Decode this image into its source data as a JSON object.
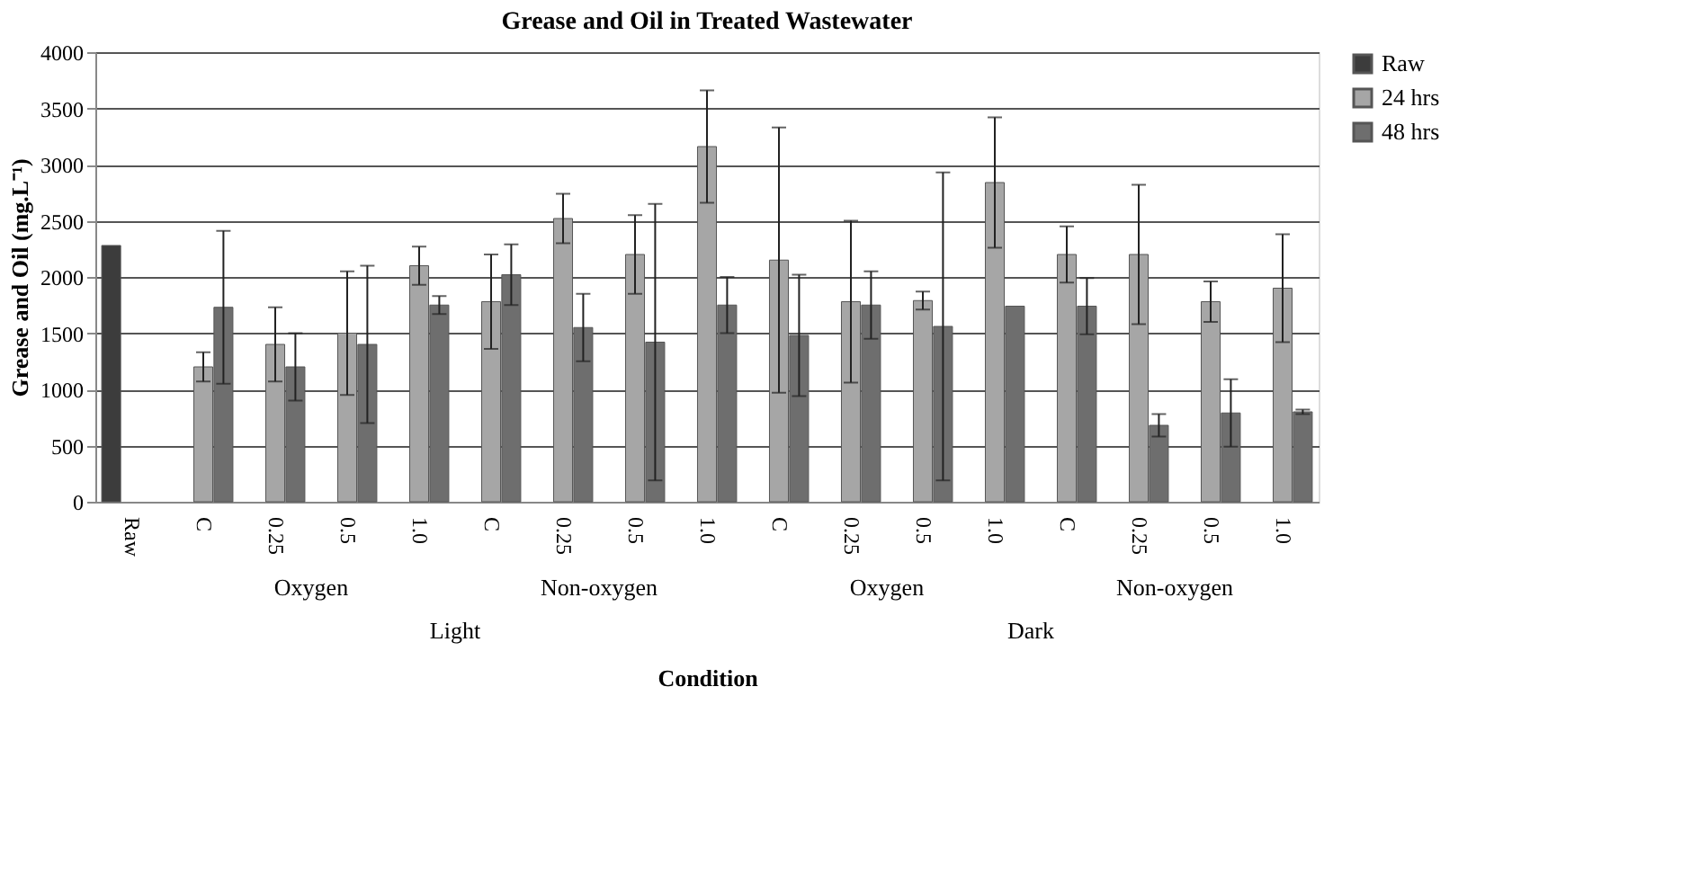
{
  "chart_data": {
    "type": "bar",
    "title": "Grease and Oil in Treated Wastewater",
    "xlabel": "Condition",
    "ylabel": "Grease and Oil (mg.L⁻¹)",
    "categories": [
      "Raw",
      "C",
      "0.25",
      "0.5",
      "1.0",
      "C",
      "0.25",
      "0.5",
      "1.0",
      "C",
      "0.25",
      "0.5",
      "1.0",
      "C",
      "0.25",
      "0.5",
      "1.0"
    ],
    "series": [
      {
        "name": "Raw",
        "color": "#3c3c3c",
        "values": [
          2280,
          null,
          null,
          null,
          null,
          null,
          null,
          null,
          null,
          null,
          null,
          null,
          null,
          null,
          null,
          null,
          null
        ],
        "errors": [
          null,
          null,
          null,
          null,
          null,
          null,
          null,
          null,
          null,
          null,
          null,
          null,
          null,
          null,
          null,
          null,
          null
        ]
      },
      {
        "name": "24 hrs",
        "color": "#a6a6a6",
        "values": [
          null,
          1200,
          1400,
          1500,
          2100,
          1780,
          2520,
          2200,
          3160,
          2150,
          1780,
          1790,
          2840,
          2200,
          2200,
          1780,
          1900
        ],
        "errors": [
          null,
          130,
          330,
          550,
          170,
          420,
          220,
          350,
          500,
          1180,
          720,
          80,
          580,
          250,
          620,
          180,
          480
        ]
      },
      {
        "name": "48 hrs",
        "color": "#6e6e6e",
        "values": [
          null,
          1730,
          1200,
          1400,
          1750,
          2020,
          1550,
          1420,
          1750,
          1480,
          1750,
          1560,
          1740,
          1740,
          680,
          790,
          800
        ],
        "errors": [
          null,
          680,
          300,
          700,
          80,
          270,
          300,
          1230,
          250,
          540,
          300,
          1370,
          null,
          250,
          100,
          300,
          20
        ]
      }
    ],
    "annotations": [
      "Oxygen",
      "Non-oxygen",
      "Oxygen",
      "Non-oxygen",
      "Light",
      "Dark"
    ],
    "ylim": [
      0,
      4000
    ],
    "yticks": [
      0,
      500,
      1000,
      1500,
      2000,
      2500,
      3000,
      3500,
      4000
    ],
    "grid": "y",
    "legend": "right"
  }
}
